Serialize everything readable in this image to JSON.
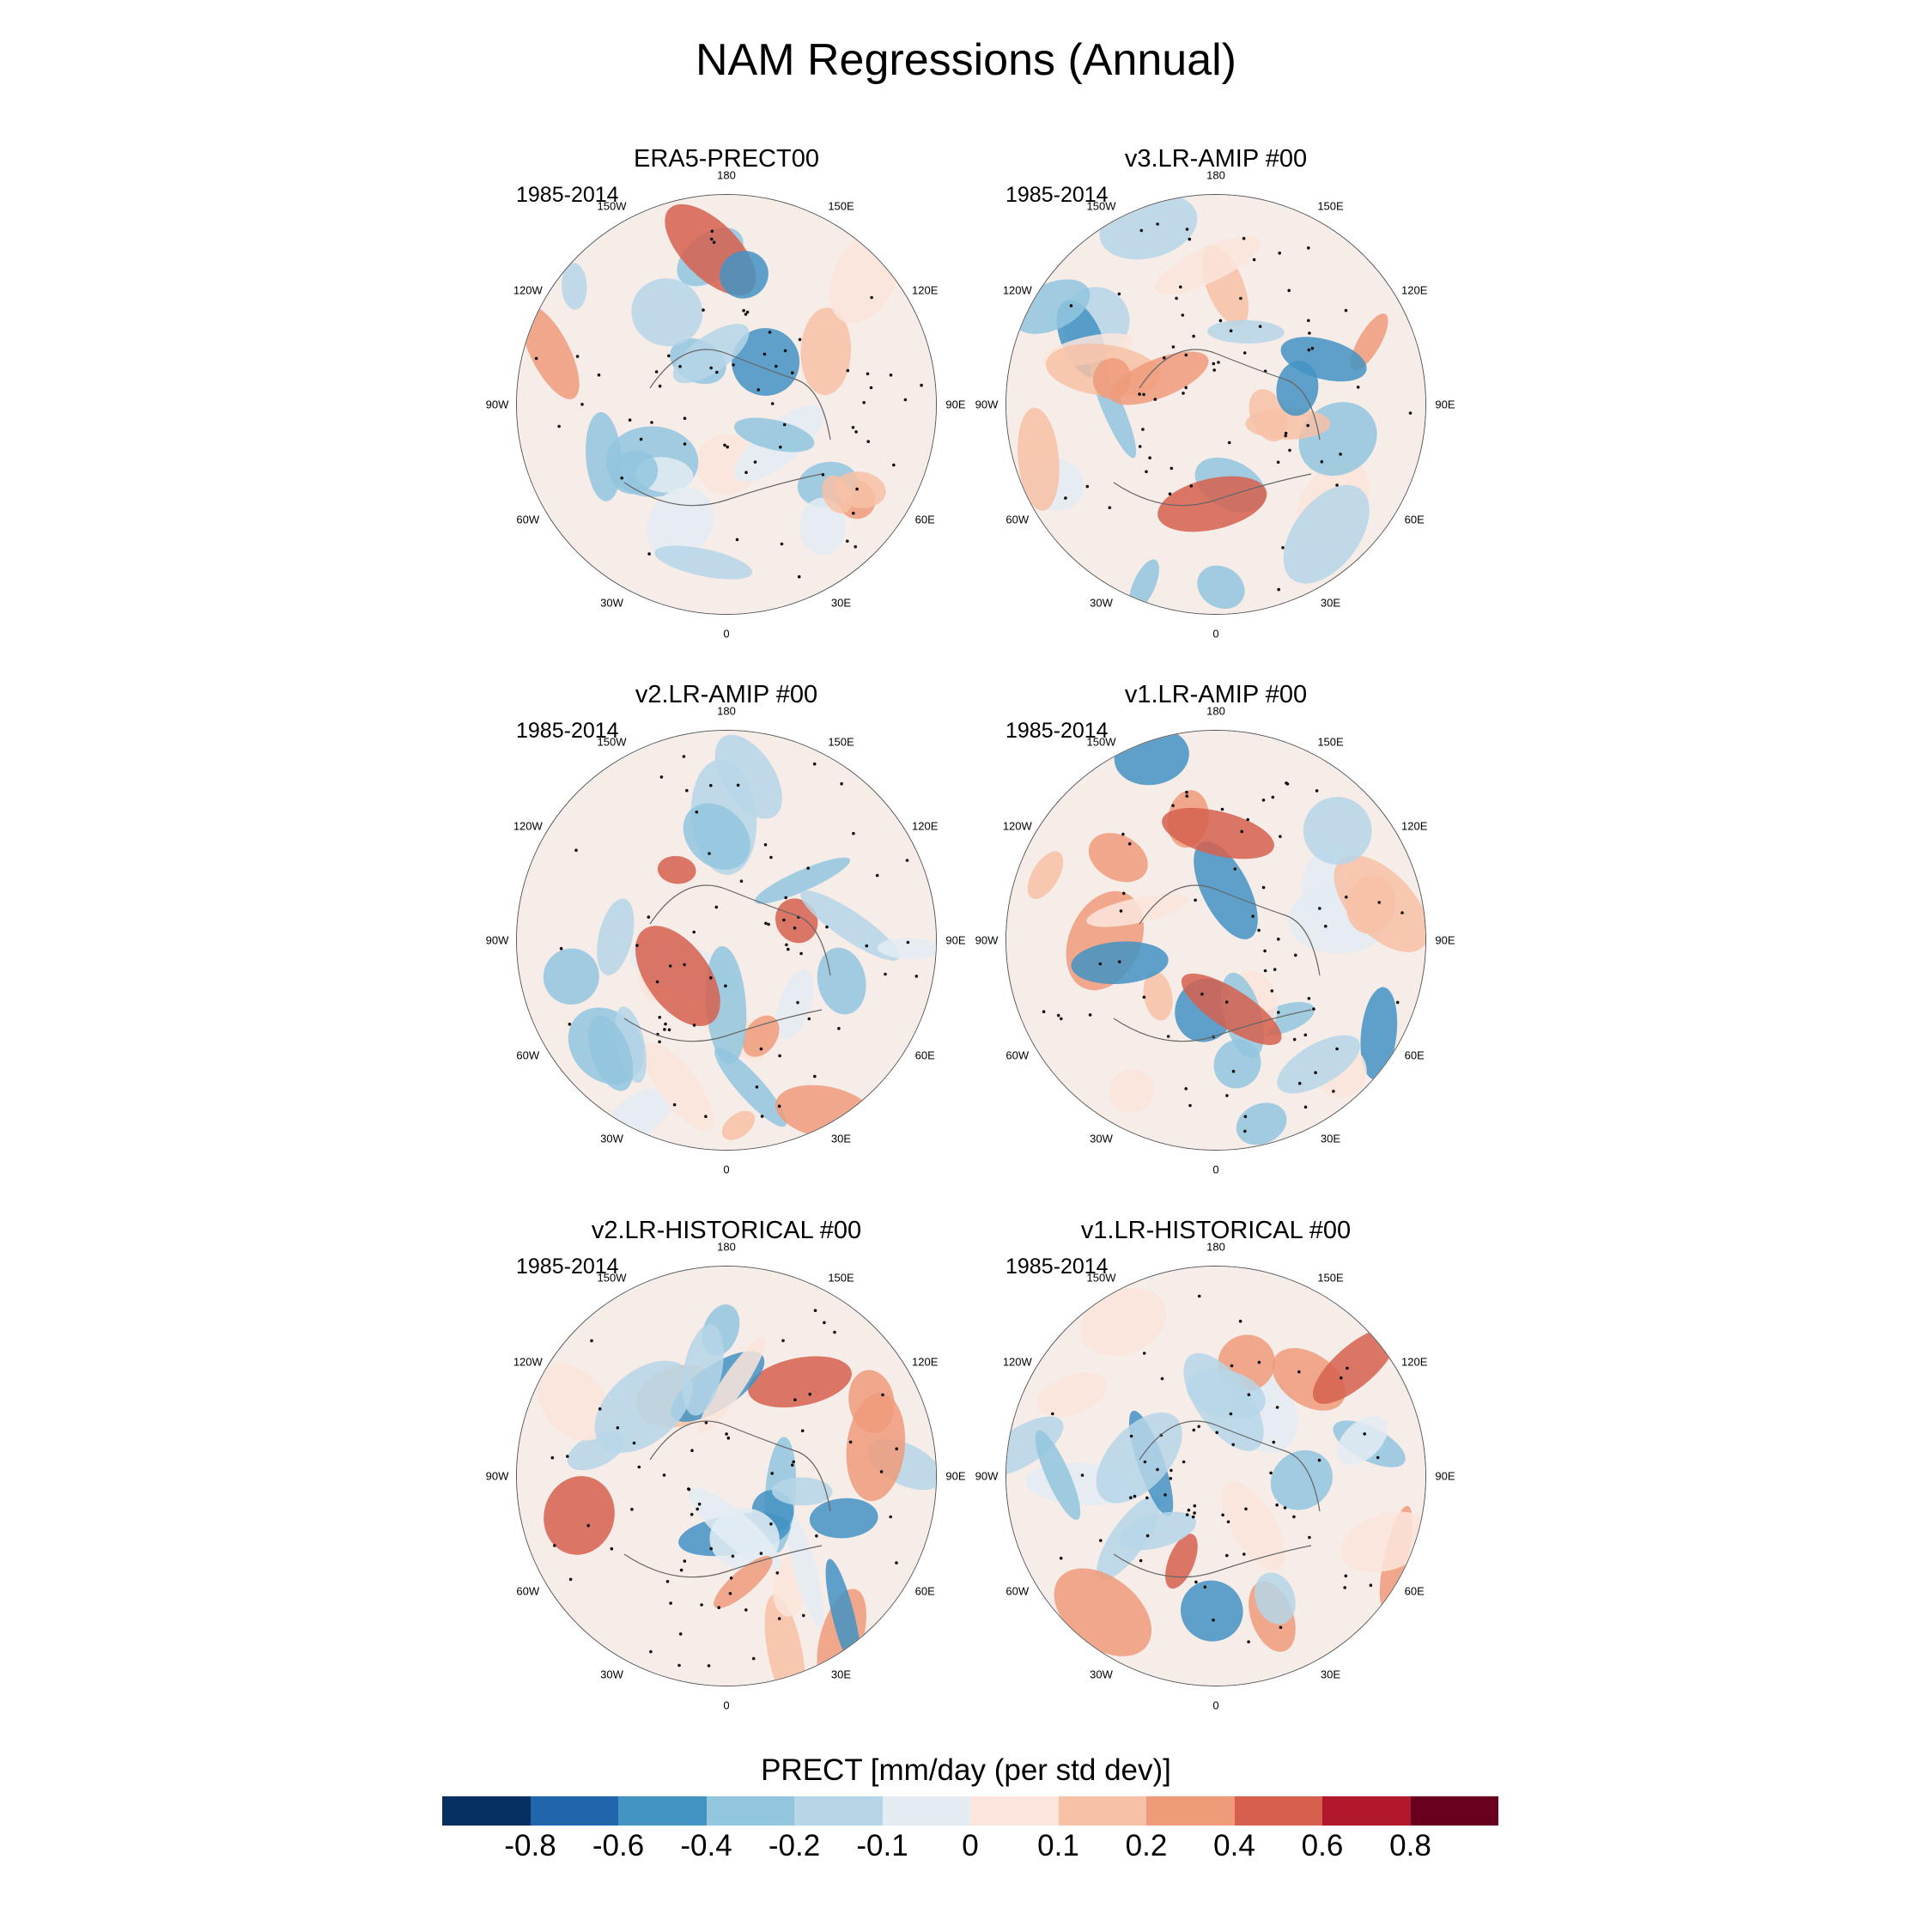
{
  "title": "NAM Regressions (Annual)",
  "panels": [
    {
      "title": "ERA5-PRECT00",
      "period": "1985-2014"
    },
    {
      "title": "v3.LR-AMIP  #00",
      "period": "1985-2014"
    },
    {
      "title": "v2.LR-AMIP  #00",
      "period": "1985-2014"
    },
    {
      "title": "v1.LR-AMIP  #00",
      "period": "1985-2014"
    },
    {
      "title": "v2.LR-HISTORICAL  #00",
      "period": "1985-2014"
    },
    {
      "title": "v1.LR-HISTORICAL  #00",
      "period": "1985-2014"
    }
  ],
  "longitudes": [
    "180",
    "150E",
    "120E",
    "90E",
    "60E",
    "30E",
    "0",
    "30W",
    "60W",
    "90W",
    "120W",
    "150W"
  ],
  "colorbar": {
    "title": "PRECT [mm/day (per std dev)]",
    "ticks": [
      "-0.8",
      "-0.6",
      "-0.4",
      "-0.2",
      "-0.1",
      "0",
      "0.1",
      "0.2",
      "0.4",
      "0.6",
      "0.8"
    ],
    "colors": [
      "#053061",
      "#2166ac",
      "#4393c3",
      "#92c5de",
      "#b6d6e8",
      "#e3ecf3",
      "#fbe5dc",
      "#f7c1a6",
      "#ee9b7a",
      "#d6604d",
      "#b2182b",
      "#67001f"
    ]
  }
}
